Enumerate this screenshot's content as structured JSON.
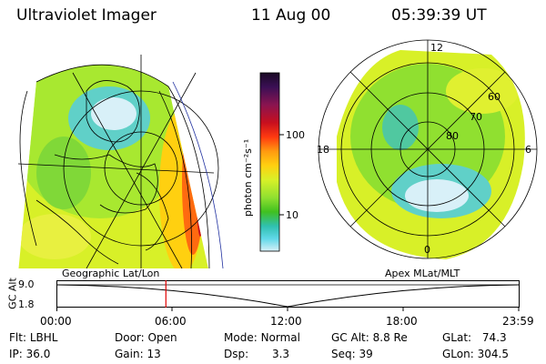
{
  "header": {
    "instrument": "Ultraviolet Imager",
    "date": "11 Aug 00",
    "time": "05:39:39 UT"
  },
  "left_map": {
    "label": "Geographic Lat/Lon"
  },
  "right_map": {
    "label": "Apex MLat/MLT",
    "mlt_labels": {
      "top": "12",
      "left": "18",
      "right": "6",
      "bottom": "0"
    },
    "lat_labels": [
      "60",
      "70",
      "80"
    ]
  },
  "colorbar": {
    "unit_label": "photon cm⁻²s⁻¹",
    "tick_labels": [
      "100",
      "10"
    ],
    "colors": [
      "#1a0a24",
      "#3a0f55",
      "#8a1450",
      "#c80f1e",
      "#ff3a10",
      "#ff9a10",
      "#ffd010",
      "#d8f028",
      "#90e030",
      "#40c020",
      "#30c0b0",
      "#60d8e8",
      "#d8f0f8"
    ]
  },
  "timeline": {
    "axis_label": "GC Alt",
    "y_ticks": [
      "9.0",
      "1.8"
    ],
    "x_ticks": [
      "00:00",
      "06:00",
      "12:00",
      "18:00",
      "23:59"
    ],
    "current_time_fraction": 0.2358
  },
  "status": {
    "flt": {
      "label": "Flt:",
      "value": "LBHL"
    },
    "ip": {
      "label": "IP:",
      "value": "36.0"
    },
    "door": {
      "label": "Door:",
      "value": "Open"
    },
    "gain": {
      "label": "Gain:",
      "value": "13"
    },
    "mode": {
      "label": "Mode:",
      "value": "Normal"
    },
    "dsp": {
      "label": "Dsp:",
      "value": "3.3"
    },
    "gc_alt": {
      "label": "GC Alt:",
      "value": "8.8 Re"
    },
    "seq": {
      "label": "Seq:",
      "value": "39"
    },
    "glat": {
      "label": "GLat:",
      "value": "74.3"
    },
    "glon": {
      "label": "GLon:",
      "value": "304.5"
    }
  }
}
